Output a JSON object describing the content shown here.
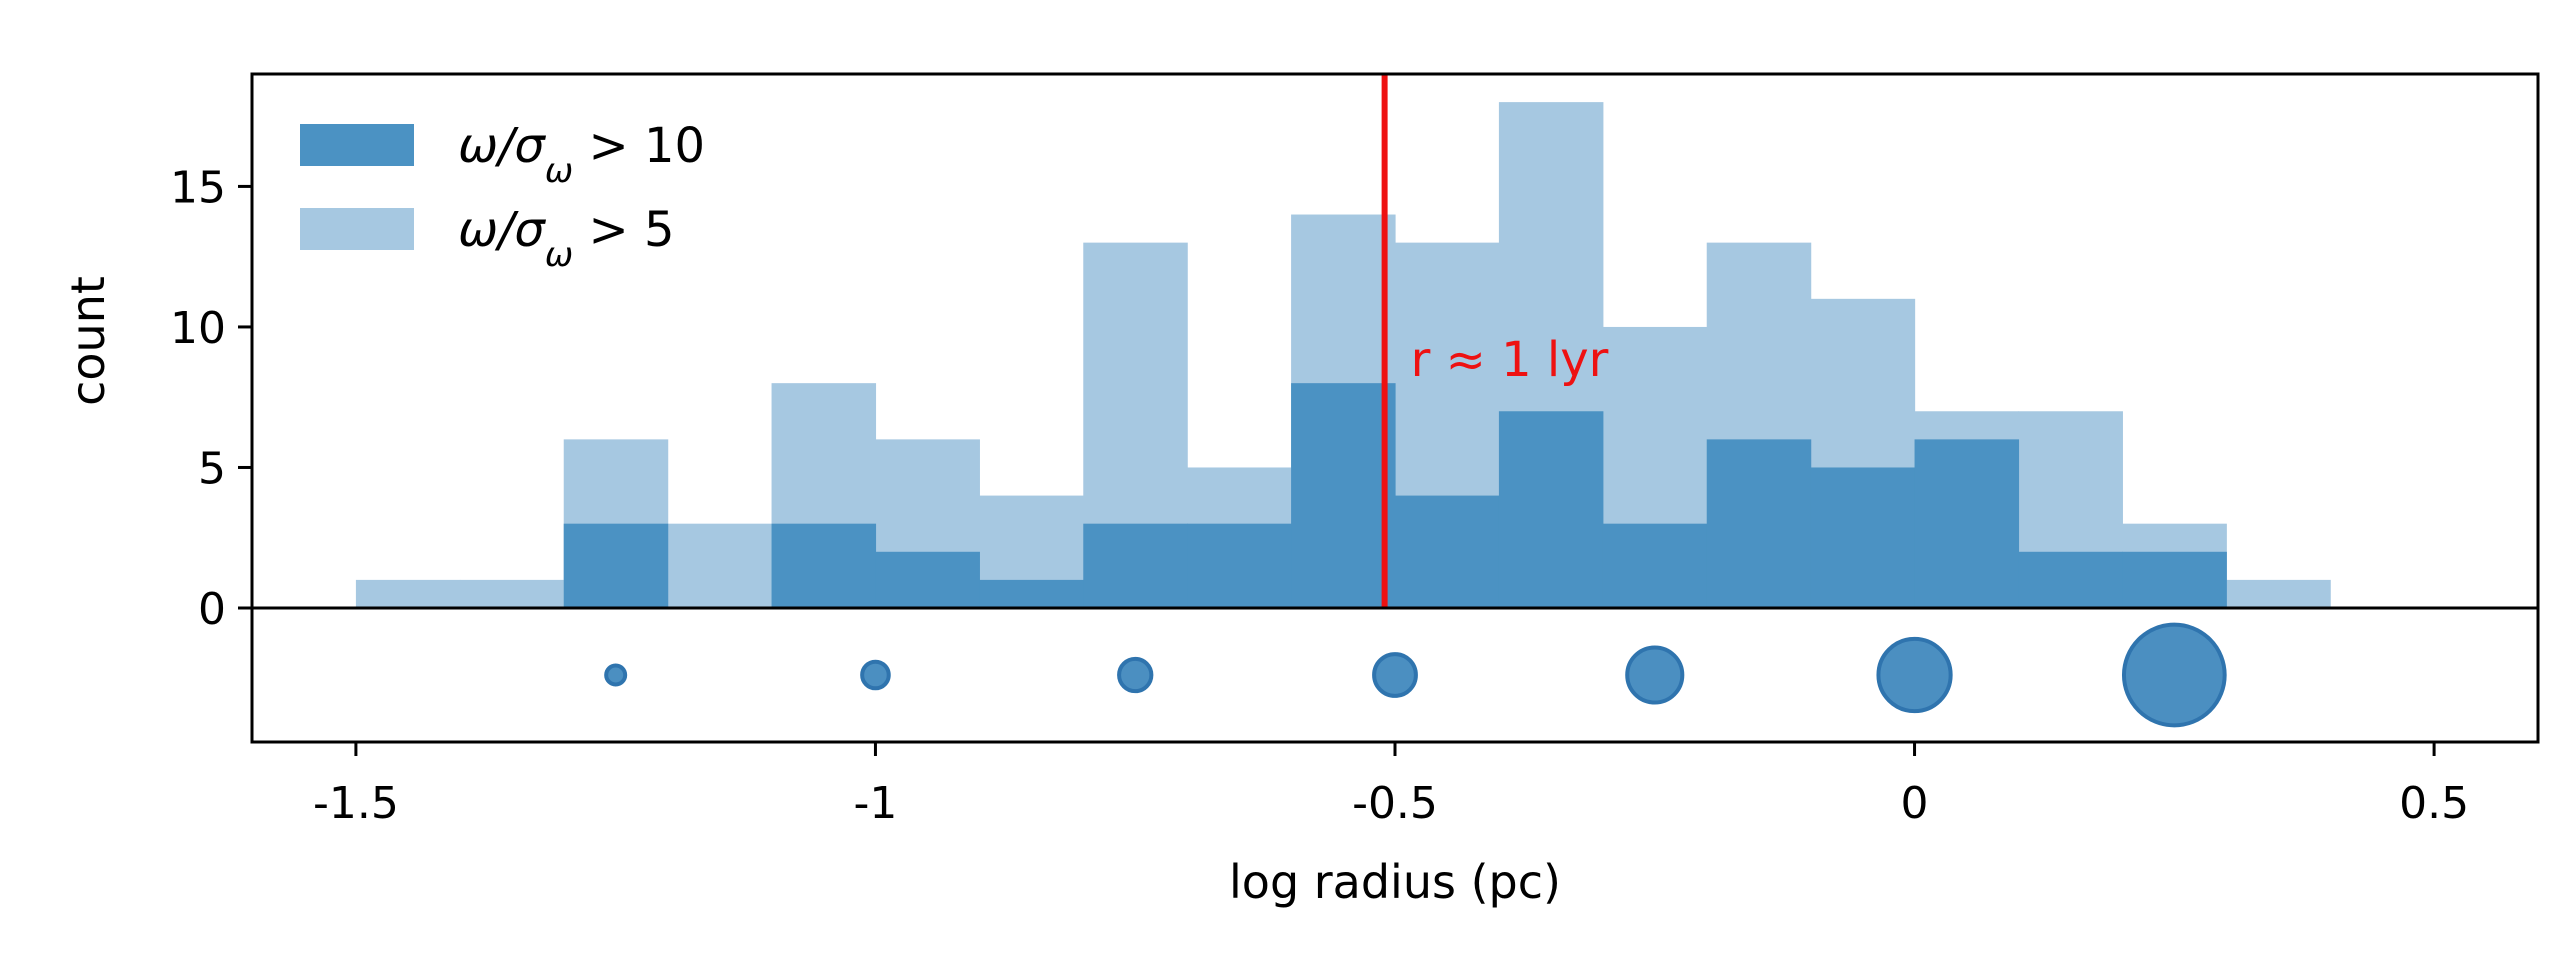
{
  "chart_data": {
    "type": "bar",
    "title": "",
    "xlabel": "log radius (pc)",
    "ylabel": "count",
    "xlim": [
      -1.6,
      0.6
    ],
    "ylim": [
      0,
      19
    ],
    "xticks": [
      -1.5,
      -1,
      -0.5,
      0,
      0.5
    ],
    "xtick_labels": [
      "-1.5",
      "-1",
      "-0.5",
      "0",
      "0.5"
    ],
    "yticks": [
      0,
      5,
      10,
      15
    ],
    "ytick_labels": [
      "0",
      "5",
      "10",
      "15"
    ],
    "bin_edges": [
      -1.5,
      -1.4,
      -1.3,
      -1.2,
      -1.1,
      -1.0,
      -0.9,
      -0.8,
      -0.7,
      -0.6,
      -0.5,
      -0.4,
      -0.3,
      -0.2,
      -0.1,
      0.0,
      0.1,
      0.2,
      0.3,
      0.4
    ],
    "series": [
      {
        "name": "ω/σω > 5",
        "color": "#a6c8e1",
        "values": [
          1,
          1,
          6,
          3,
          8,
          6,
          4,
          13,
          5,
          14,
          13,
          18,
          10,
          13,
          11,
          7,
          7,
          3,
          1
        ]
      },
      {
        "name": "ω/σω > 10",
        "color": "#4b92c3",
        "values": [
          0,
          0,
          3,
          0,
          3,
          2,
          1,
          3,
          3,
          8,
          4,
          7,
          3,
          6,
          5,
          6,
          2,
          2,
          0
        ]
      }
    ],
    "legend": {
      "placement": "top-left",
      "entries": [
        {
          "text": "ω/σ",
          "sub": "ω",
          "rest": " > 10",
          "color": "#4b92c3"
        },
        {
          "text": "ω/σ",
          "sub": "ω",
          "rest": " > 5",
          "color": "#a6c8e1"
        }
      ]
    },
    "reference_line": {
      "x": -0.51,
      "color": "#ee1111",
      "label": "r ≈ 1 lyr"
    },
    "size_markers": {
      "color": "#4b8fc1",
      "edge_color": "#2f74ae",
      "x": [
        -1.25,
        -1.0,
        -0.75,
        -0.5,
        -0.25,
        0.0,
        0.25
      ],
      "relative_size": [
        1,
        1.4,
        1.7,
        2.2,
        2.9,
        3.8,
        5.3
      ]
    }
  }
}
